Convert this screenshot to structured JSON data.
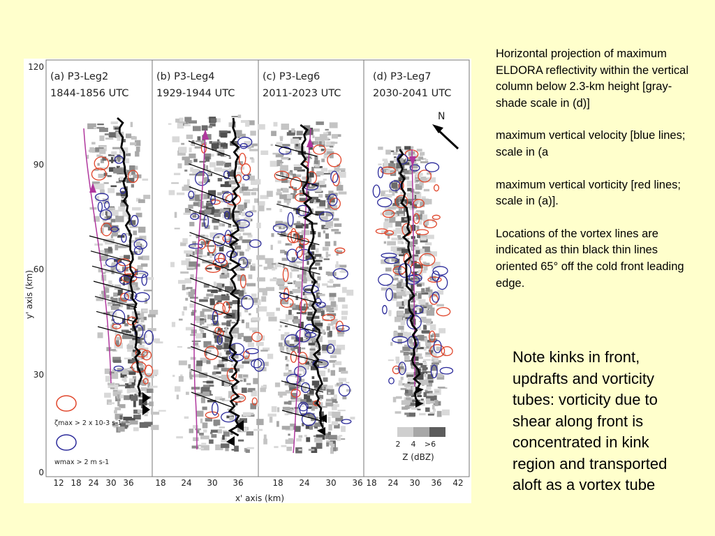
{
  "figure": {
    "panels": [
      {
        "label": "(a) P3-Leg2",
        "time": "1844-1856 UTC"
      },
      {
        "label": "(b) P3-Leg4",
        "time": "1929-1944 UTC"
      },
      {
        "label": "(c) P3-Leg6",
        "time": "2011-2023 UTC"
      },
      {
        "label": "(d) P3-Leg7",
        "time": "2030-2041 UTC"
      }
    ],
    "y_axis_label": "y' axis (km)",
    "y_ticks": [
      "120",
      "90",
      "60",
      "30",
      "0"
    ],
    "x_axis_label": "x' axis (km)",
    "x_tick_groups": [
      [
        "12",
        "18",
        "24",
        "30",
        "36"
      ],
      [
        "18",
        "24",
        "30",
        "36"
      ],
      [
        "18",
        "24",
        "30",
        "36"
      ],
      [
        "18",
        "24",
        "30",
        "36",
        "42"
      ]
    ],
    "north_label": "N",
    "vorticity_legend": "ζmax > 2 x 10-3 s-1",
    "velocity_legend": "wmax > 2 m s-1",
    "shade_scale_labels": [
      "2",
      "4",
      ">6"
    ],
    "shade_scale_title": "Z (dBZ)",
    "colors": {
      "vorticity": "#e0452a",
      "velocity": "#2b2a9a",
      "front": "#000000",
      "trajectory": "#b0379e"
    }
  },
  "caption": {
    "p1": "Horizontal projection of maximum ELDORA reflectivity within the vertical column below 2.3-km height [gray-shade scale in (d)]",
    "p2": "maximum vertical velocity [blue lines; scale in (a",
    "p3": "maximum vertical vorticity [red lines; scale in (a)].",
    "p4": "Locations of the vortex lines are indicated as thin black thin lines oriented 65° off the cold front leading edge."
  },
  "note": "Note kinks in front, updrafts and vorticity tubes: vorticity due to shear along front is concentrated in kink region and transported aloft as a vortex tube"
}
